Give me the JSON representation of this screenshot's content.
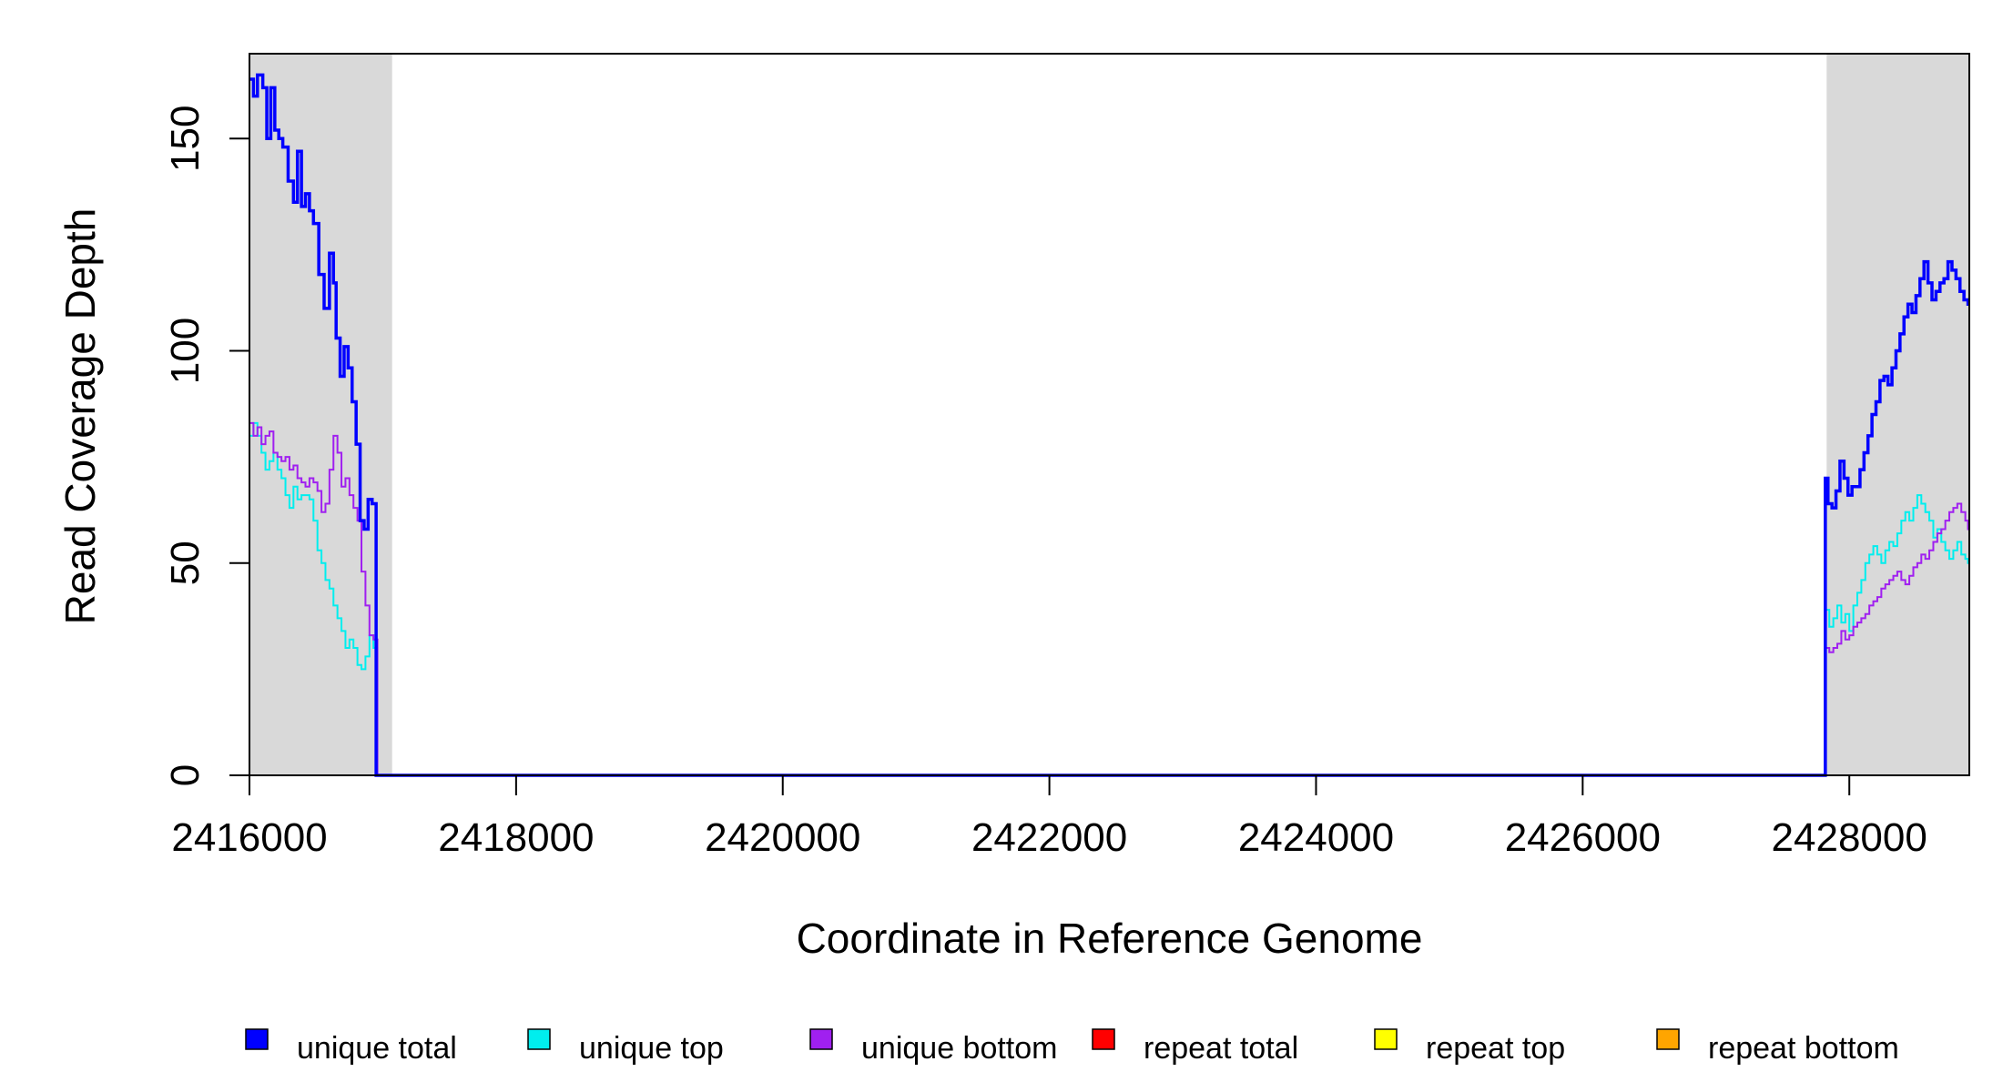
{
  "chart_data": {
    "type": "line",
    "xlabel": "Coordinate in Reference Genome",
    "ylabel": "Read Coverage Depth",
    "xlim": [
      2416000,
      2428900
    ],
    "ylim": [
      0,
      170
    ],
    "x_ticks": [
      2416000,
      2418000,
      2420000,
      2422000,
      2424000,
      2426000,
      2428000
    ],
    "x_tick_labels": [
      "2416000",
      "2418000",
      "2420000",
      "2422000",
      "2424000",
      "2426000",
      "2428000"
    ],
    "y_ticks": [
      0,
      50,
      100,
      150
    ],
    "y_tick_labels": [
      "0",
      "50",
      "100",
      "150"
    ],
    "shaded_regions": [
      [
        2416000,
        2417070
      ],
      [
        2427830,
        2428900
      ]
    ],
    "shaded_color": "#d9d9d9",
    "legend_position": "bottom",
    "series": [
      {
        "name": "unique total",
        "color": "#0000ff",
        "x": [
          2416000,
          2416030,
          2416060,
          2416100,
          2416130,
          2416160,
          2416190,
          2416220,
          2416250,
          2416290,
          2416330,
          2416360,
          2416390,
          2416420,
          2416450,
          2416480,
          2416520,
          2416560,
          2416600,
          2416630,
          2416650,
          2416680,
          2416710,
          2416740,
          2416770,
          2416800,
          2416830,
          2416860,
          2416890,
          2416920,
          2416950,
          2416980,
          2417010,
          2417040,
          2417060,
          2417075,
          2417100,
          2427790,
          2427820,
          2427840,
          2427870,
          2427900,
          2427930,
          2427960,
          2427990,
          2428020,
          2428050,
          2428080,
          2428110,
          2428140,
          2428170,
          2428200,
          2428230,
          2428260,
          2428290,
          2428320,
          2428350,
          2428380,
          2428410,
          2428440,
          2428470,
          2428500,
          2428530,
          2428560,
          2428590,
          2428620,
          2428650,
          2428680,
          2428710,
          2428740,
          2428770,
          2428800,
          2428830,
          2428860,
          2428890
        ],
        "values": [
          164,
          160,
          165,
          162,
          150,
          162,
          152,
          150,
          148,
          140,
          135,
          147,
          134,
          137,
          133,
          130,
          118,
          110,
          123,
          116,
          103,
          94,
          101,
          96,
          88,
          78,
          60,
          58,
          65,
          64,
          0,
          0,
          0,
          0,
          0,
          0,
          0,
          0,
          70,
          64,
          63,
          67,
          74,
          70,
          66,
          68,
          68,
          72,
          76,
          80,
          85,
          88,
          93,
          94,
          92,
          96,
          100,
          104,
          108,
          111,
          109,
          113,
          117,
          121,
          116,
          112,
          114,
          116,
          117,
          121,
          119,
          117,
          114,
          112,
          111
        ]
      },
      {
        "name": "unique top",
        "color": "#00eeee",
        "x": [
          2416000,
          2416030,
          2416060,
          2416090,
          2416120,
          2416150,
          2416180,
          2416210,
          2416240,
          2416270,
          2416300,
          2416330,
          2416360,
          2416390,
          2416420,
          2416450,
          2416480,
          2416510,
          2416540,
          2416570,
          2416600,
          2416630,
          2416660,
          2416690,
          2416720,
          2416750,
          2416780,
          2416810,
          2416840,
          2416870,
          2416900,
          2416930,
          2416960,
          2416990,
          2417020,
          2417050,
          2417065,
          2417080,
          2427800,
          2427820,
          2427850,
          2427880,
          2427910,
          2427940,
          2427970,
          2428000,
          2428030,
          2428060,
          2428090,
          2428120,
          2428150,
          2428180,
          2428210,
          2428240,
          2428270,
          2428300,
          2428330,
          2428360,
          2428390,
          2428420,
          2428450,
          2428480,
          2428510,
          2428540,
          2428570,
          2428600,
          2428630,
          2428660,
          2428690,
          2428720,
          2428750,
          2428780,
          2428810,
          2428840,
          2428870,
          2428890
        ],
        "values": [
          80,
          83,
          80,
          76,
          72,
          74,
          76,
          72,
          70,
          66,
          63,
          68,
          65,
          66,
          66,
          65,
          60,
          53,
          50,
          46,
          44,
          40,
          37,
          34,
          30,
          32,
          30,
          26,
          25,
          28,
          33,
          30,
          0,
          0,
          0,
          0,
          0,
          0,
          0,
          39,
          35,
          37,
          40,
          36,
          38,
          34,
          40,
          43,
          46,
          50,
          52,
          54,
          52,
          50,
          53,
          55,
          54,
          57,
          60,
          62,
          60,
          63,
          66,
          64,
          62,
          60,
          56,
          58,
          55,
          53,
          51,
          53,
          55,
          52,
          51,
          50
        ]
      },
      {
        "name": "unique bottom",
        "color": "#a020f0",
        "x": [
          2416000,
          2416030,
          2416060,
          2416090,
          2416120,
          2416150,
          2416180,
          2416210,
          2416240,
          2416270,
          2416300,
          2416330,
          2416360,
          2416390,
          2416420,
          2416450,
          2416480,
          2416510,
          2416540,
          2416570,
          2416600,
          2416630,
          2416660,
          2416690,
          2416720,
          2416750,
          2416780,
          2416810,
          2416840,
          2416870,
          2416900,
          2416930,
          2416960,
          2416990,
          2417020,
          2417050,
          2417065,
          2417080,
          2427800,
          2427820,
          2427850,
          2427880,
          2427910,
          2427940,
          2427970,
          2428000,
          2428030,
          2428060,
          2428090,
          2428120,
          2428150,
          2428180,
          2428210,
          2428240,
          2428270,
          2428300,
          2428330,
          2428360,
          2428390,
          2428420,
          2428450,
          2428480,
          2428510,
          2428540,
          2428570,
          2428600,
          2428630,
          2428660,
          2428690,
          2428720,
          2428750,
          2428780,
          2428810,
          2428840,
          2428870,
          2428890
        ],
        "values": [
          83,
          80,
          82,
          78,
          80,
          81,
          76,
          75,
          74,
          75,
          72,
          73,
          70,
          69,
          68,
          70,
          69,
          67,
          62,
          64,
          72,
          80,
          76,
          68,
          70,
          66,
          63,
          60,
          48,
          40,
          33,
          32,
          0,
          0,
          0,
          0,
          0,
          0,
          0,
          30,
          29,
          30,
          31,
          34,
          32,
          33,
          35,
          36,
          37,
          38,
          40,
          41,
          42,
          44,
          45,
          46,
          47,
          48,
          46,
          45,
          47,
          49,
          50,
          52,
          51,
          53,
          55,
          57,
          58,
          60,
          62,
          63,
          64,
          62,
          60,
          58
        ]
      },
      {
        "name": "repeat total",
        "color": "#ff0000",
        "x": [
          2416000,
          2428890
        ],
        "values": [
          0,
          0
        ]
      },
      {
        "name": "repeat top",
        "color": "#ffff00",
        "x": [
          2416000,
          2428890
        ],
        "values": [
          0,
          0
        ]
      },
      {
        "name": "repeat bottom",
        "color": "#ffa500",
        "x": [
          2416000,
          2428890
        ],
        "values": [
          0,
          0
        ]
      }
    ]
  }
}
